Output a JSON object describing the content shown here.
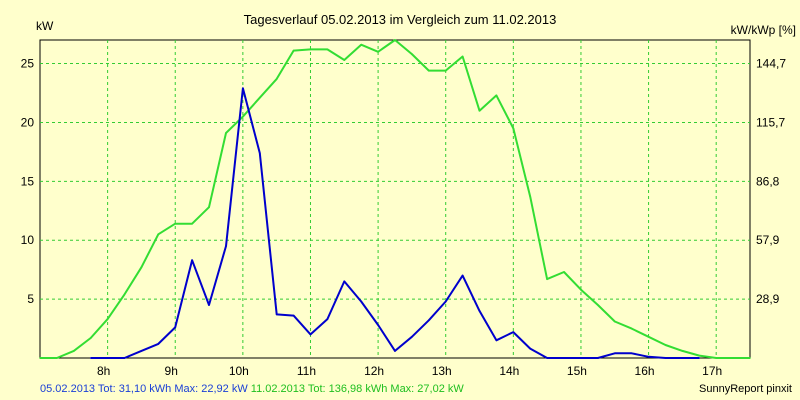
{
  "chart_data": {
    "type": "line",
    "title": "Tagesverlauf 05.02.2013 im Vergleich zum 11.02.2013",
    "left_axis_unit": "kW",
    "right_axis_unit": "kW/kWp [%]",
    "ylim": [
      0,
      27
    ],
    "xlim": [
      7.0,
      17.5
    ],
    "left_ticks": [
      5,
      10,
      15,
      20,
      25
    ],
    "right_ticks": [
      {
        "at": 5,
        "label": "28,9"
      },
      {
        "at": 10,
        "label": "57,9"
      },
      {
        "at": 15,
        "label": "86,8"
      },
      {
        "at": 20,
        "label": "115,7"
      },
      {
        "at": 25,
        "label": "144,7"
      }
    ],
    "x_ticks": [
      {
        "at": 8,
        "label": "8h"
      },
      {
        "at": 9,
        "label": "9h"
      },
      {
        "at": 10,
        "label": "10h"
      },
      {
        "at": 11,
        "label": "11h"
      },
      {
        "at": 12,
        "label": "12h"
      },
      {
        "at": 13,
        "label": "13h"
      },
      {
        "at": 14,
        "label": "14h"
      },
      {
        "at": 15,
        "label": "15h"
      },
      {
        "at": 16,
        "label": "16h"
      },
      {
        "at": 17,
        "label": "17h"
      }
    ],
    "grid": true,
    "series": [
      {
        "name": "05.02.2013",
        "color": "#0000cc",
        "x": [
          7.75,
          7.83,
          8.0,
          8.25,
          8.5,
          8.75,
          9.0,
          9.25,
          9.5,
          9.75,
          10.0,
          10.25,
          10.5,
          10.75,
          11.0,
          11.25,
          11.5,
          11.75,
          12.0,
          12.25,
          12.5,
          12.75,
          13.0,
          13.25,
          13.5,
          13.75,
          14.0,
          14.25,
          14.5,
          14.75,
          15.0,
          15.25,
          15.5,
          15.75,
          16.0,
          16.25,
          16.5,
          16.75
        ],
        "y": [
          0,
          0,
          0,
          0,
          0.6,
          1.2,
          2.6,
          8.3,
          4.5,
          9.5,
          22.9,
          17.4,
          3.7,
          3.6,
          2.0,
          3.3,
          6.5,
          4.8,
          2.8,
          0.6,
          1.8,
          3.2,
          4.8,
          7.0,
          4.0,
          1.5,
          2.2,
          0.8,
          0,
          0,
          0,
          0,
          0.4,
          0.4,
          0.1,
          0,
          0,
          0
        ]
      },
      {
        "name": "11.02.2013",
        "color": "#33dd33",
        "x": [
          7.0,
          7.25,
          7.5,
          7.75,
          8.0,
          8.25,
          8.5,
          8.75,
          9.0,
          9.25,
          9.5,
          9.75,
          10.0,
          10.25,
          10.5,
          10.75,
          11.0,
          11.25,
          11.5,
          11.75,
          12.0,
          12.25,
          12.5,
          12.75,
          13.0,
          13.25,
          13.5,
          13.75,
          14.0,
          14.25,
          14.5,
          14.75,
          15.0,
          15.25,
          15.5,
          15.75,
          16.0,
          16.25,
          16.5,
          16.75,
          17.0,
          17.25,
          17.5
        ],
        "y": [
          0,
          0,
          0.6,
          1.7,
          3.3,
          5.4,
          7.7,
          10.5,
          11.4,
          11.4,
          12.8,
          19.1,
          20.5,
          22.1,
          23.7,
          26.1,
          26.2,
          26.2,
          25.3,
          26.6,
          26.0,
          27.0,
          25.8,
          24.4,
          24.4,
          25.6,
          21.0,
          22.3,
          19.5,
          13.7,
          6.7,
          7.3,
          5.8,
          4.5,
          3.1,
          2.5,
          1.8,
          1.1,
          0.6,
          0.2,
          0,
          0,
          0
        ]
      }
    ]
  },
  "footer": {
    "blue_text": "05.02.2013 Tot: 31,10 kWh Max: 22,92 kW",
    "green_text": "11.02.2013 Tot: 136,98 kWh Max: 27,02 kW",
    "credit": "SunnyReport pinxit"
  }
}
